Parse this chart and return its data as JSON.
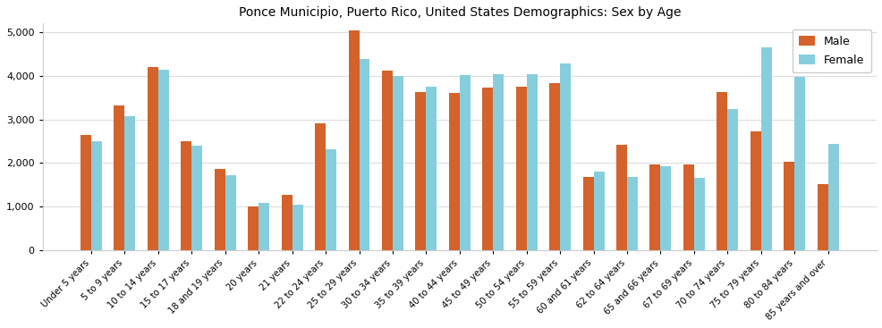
{
  "title": "Ponce Municipio, Puerto Rico, United States Demographics: Sex by Age",
  "categories": [
    "Under 5 years",
    "5 to 9 years",
    "10 to 14 years",
    "15 to 17 years",
    "18 and 19 years",
    "20 years",
    "21 years",
    "22 to 24 years",
    "25 to 29 years",
    "30 to 34 years",
    "35 to 39 years",
    "40 to 44 years",
    "45 to 49 years",
    "50 to 54 years",
    "55 to 59 years",
    "60 and 61 years",
    "62 to 64 years",
    "65 and 66 years",
    "67 to 69 years",
    "70 to 74 years",
    "75 to 79 years",
    "80 to 84 years",
    "85 years and over"
  ],
  "male": [
    2650,
    3330,
    4200,
    2490,
    1860,
    1000,
    1270,
    2920,
    5040,
    4110,
    3620,
    3600,
    3720,
    3760,
    3840,
    1680,
    2420,
    1960,
    1960,
    3620,
    2720,
    2020,
    1520
  ],
  "female": [
    2510,
    3080,
    4140,
    2400,
    1730,
    1090,
    1050,
    2310,
    4390,
    3990,
    3760,
    4020,
    4030,
    4030,
    4290,
    1810,
    1680,
    1930,
    1650,
    3230,
    4650,
    3970,
    2440
  ],
  "male_color": "#d4622a",
  "female_color": "#87cedc",
  "ylim": [
    0,
    5200
  ],
  "yticks": [
    0,
    1000,
    2000,
    3000,
    4000,
    5000
  ],
  "bar_width": 0.32,
  "figsize": [
    9.87,
    3.67
  ],
  "dpi": 100,
  "title_fontsize": 10,
  "tick_fontsize": 7.2,
  "ytick_fontsize": 8,
  "legend_fontsize": 9
}
